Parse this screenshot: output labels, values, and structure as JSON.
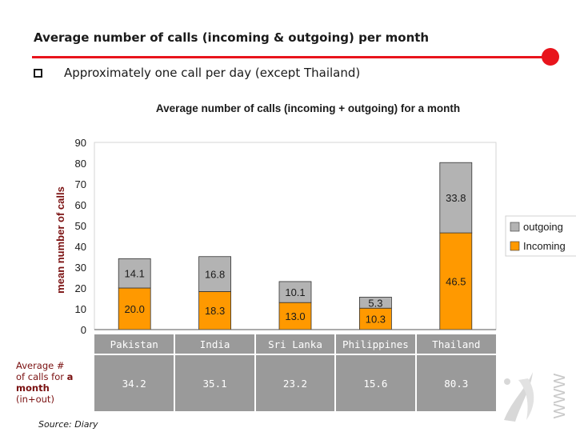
{
  "slide": {
    "title": "Average number of calls (incoming & outgoing) per month",
    "bullet": "Approximately one call per day (except Thailand)",
    "source": "Source: Diary",
    "row_label_lines": [
      "Average #",
      "of calls for ",
      "a",
      "month",
      "(in+out)"
    ]
  },
  "colors": {
    "accent": "#e8141c",
    "incoming": "#ff9900",
    "outgoing": "#b3b3b3",
    "table_bg": "#9a9a9a"
  },
  "chart_data": {
    "type": "bar",
    "stacked": true,
    "title": "Average number of calls (incoming + outgoing) for a  month",
    "ylabel": "mean number of calls",
    "xlabel": "",
    "ylim": [
      0,
      90
    ],
    "yticks": [
      "0",
      "10",
      "20",
      "30",
      "40",
      "50",
      "60",
      "70",
      "80",
      "90"
    ],
    "categories": [
      "Pakistan",
      "India",
      "Sri Lanka",
      "Philippines",
      "Thailand"
    ],
    "series": [
      {
        "name": "Incoming",
        "values": [
          20.0,
          18.3,
          13.0,
          10.3,
          46.5
        ],
        "labels": [
          "20.0",
          "18.3",
          "13.0",
          "10.3",
          "46.5"
        ]
      },
      {
        "name": "outgoing",
        "values": [
          14.1,
          16.8,
          10.1,
          5.3,
          33.8
        ],
        "labels": [
          "14.1",
          "16.8",
          "10.1",
          "5.3",
          "33.8"
        ]
      }
    ],
    "legend_order": [
      "outgoing",
      "Incoming"
    ],
    "legend": "right",
    "grid": false,
    "totals": [
      "34.2",
      "35.1",
      "23.2",
      "15.6",
      "80.3"
    ]
  }
}
